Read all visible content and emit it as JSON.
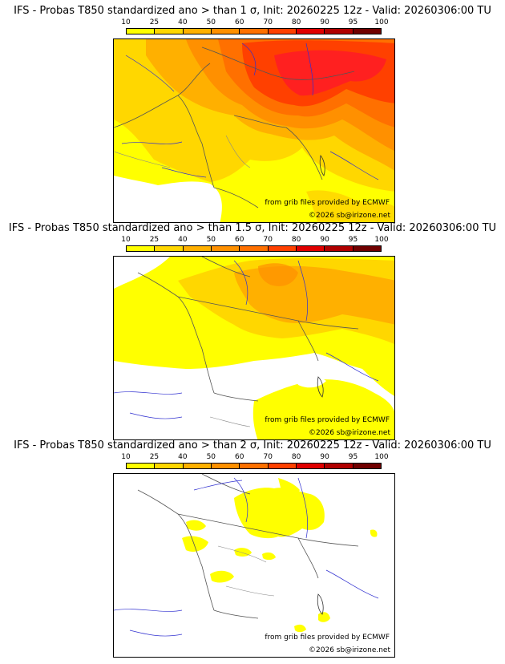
{
  "colorbar": {
    "ticks": [
      "10",
      "25",
      "40",
      "50",
      "60",
      "70",
      "80",
      "90",
      "95",
      "100"
    ],
    "colors": [
      "#ffff00",
      "#ffd700",
      "#ffb000",
      "#ff9000",
      "#ff7000",
      "#ff4000",
      "#e00000",
      "#b00000",
      "#700000"
    ]
  },
  "panels": [
    {
      "title": "IFS - Probas T850  standardized ano > than 1 σ, Init: 20260225 12z - Valid: 20260306:00 TU",
      "credit_source": "from grib files provided by ECMWF",
      "credit_copyright": "©2026 sb@irizone.net"
    },
    {
      "title": "IFS - Probas T850  standardized ano > than 1.5 σ, Init: 20260225 12z - Valid: 20260306:00 TU",
      "credit_source": "from grib files provided by ECMWF",
      "credit_copyright": "©2026 sb@irizone.net"
    },
    {
      "title": "IFS - Probas T850  standardized ano > than 2 σ, Init: 20260225 12z - Valid: 20260306:00 TU",
      "credit_source": "from grib files provided by ECMWF",
      "credit_copyright": "©2026 sb@irizone.net"
    }
  ]
}
